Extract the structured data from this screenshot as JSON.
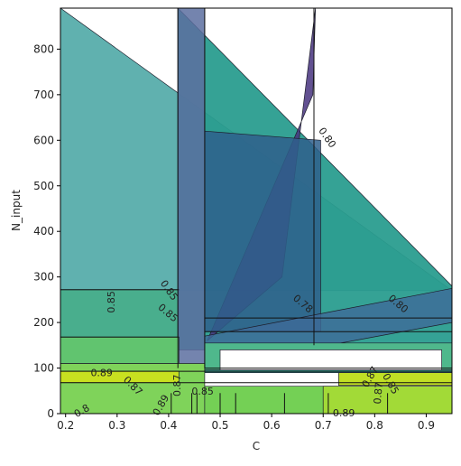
{
  "chart_data": {
    "type": "contour",
    "title": "",
    "xlabel": "C",
    "ylabel": "N_input",
    "xlim": [
      0.19,
      0.95
    ],
    "ylim": [
      0,
      890
    ],
    "xticks": [
      {
        "value": 0.2,
        "label": "0.2"
      },
      {
        "value": 0.3,
        "label": "0.3"
      },
      {
        "value": 0.4,
        "label": "0.4"
      },
      {
        "value": 0.5,
        "label": "0.5"
      },
      {
        "value": 0.6,
        "label": "0.6"
      },
      {
        "value": 0.7,
        "label": "0.7"
      },
      {
        "value": 0.8,
        "label": "0.8"
      },
      {
        "value": 0.9,
        "label": "0.9"
      }
    ],
    "yticks": [
      {
        "value": 0,
        "label": "0"
      },
      {
        "value": 100,
        "label": "100"
      },
      {
        "value": 200,
        "label": "200"
      },
      {
        "value": 300,
        "label": "300"
      },
      {
        "value": 400,
        "label": "400"
      },
      {
        "value": 500,
        "label": "500"
      },
      {
        "value": 600,
        "label": "600"
      },
      {
        "value": 700,
        "label": "700"
      },
      {
        "value": 800,
        "label": "800"
      }
    ],
    "grid": false,
    "colormap": "viridis",
    "regions": [
      {
        "level": 0.855,
        "color": "#4fa9a6",
        "opacity": 0.9,
        "points": [
          [
            0.19,
            890
          ],
          [
            0.95,
            270
          ],
          [
            0.19,
            270
          ]
        ]
      },
      {
        "level": 0.855,
        "color": "#49ae8d",
        "opacity": 1,
        "points": [
          [
            0.19,
            272
          ],
          [
            0.42,
            272
          ],
          [
            0.42,
            165
          ],
          [
            0.19,
            165
          ]
        ]
      },
      {
        "level": 0.83,
        "color": "#2a9d8f",
        "opacity": 0.95,
        "points": [
          [
            0.418,
            890
          ],
          [
            0.95,
            280
          ],
          [
            0.95,
            90
          ],
          [
            0.47,
            90
          ],
          [
            0.47,
            140
          ],
          [
            0.418,
            140
          ]
        ]
      },
      {
        "level": 0.78,
        "color": "#46327e",
        "opacity": 0.85,
        "points": [
          [
            0.685,
            890
          ],
          [
            0.68,
            700
          ],
          [
            0.475,
            160
          ],
          [
            0.62,
            300
          ]
        ]
      },
      {
        "level": 0.8,
        "color": "#5c6fa0",
        "opacity": 0.85,
        "points": [
          [
            0.418,
            890
          ],
          [
            0.47,
            890
          ],
          [
            0.47,
            100
          ],
          [
            0.418,
            100
          ]
        ]
      },
      {
        "level": 0.81,
        "color": "#2f5f8c",
        "opacity": 0.85,
        "points": [
          [
            0.47,
            620
          ],
          [
            0.695,
            600
          ],
          [
            0.695,
            180
          ],
          [
            0.47,
            180
          ]
        ]
      },
      {
        "level": 0.82,
        "color": "#3e6a98",
        "opacity": 0.8,
        "points": [
          [
            0.47,
            170
          ],
          [
            0.95,
            275
          ],
          [
            0.95,
            200
          ],
          [
            0.47,
            100
          ]
        ]
      },
      {
        "level": 0.86,
        "color": "#61c46f",
        "opacity": 1,
        "points": [
          [
            0.19,
            168
          ],
          [
            0.42,
            168
          ],
          [
            0.42,
            110
          ],
          [
            0.19,
            110
          ]
        ]
      },
      {
        "level": 0.87,
        "color": "#7fd35a",
        "opacity": 1,
        "points": [
          [
            0.19,
            110
          ],
          [
            0.47,
            110
          ],
          [
            0.47,
            0
          ],
          [
            0.19,
            0
          ]
        ]
      },
      {
        "level": 0.89,
        "color": "#c8e020",
        "opacity": 1,
        "points": [
          [
            0.19,
            93
          ],
          [
            0.42,
            93
          ],
          [
            0.42,
            68
          ],
          [
            0.19,
            68
          ]
        ]
      },
      {
        "level": 0.86,
        "color": "#74d055",
        "opacity": 1,
        "points": [
          [
            0.47,
            60
          ],
          [
            0.95,
            60
          ],
          [
            0.95,
            0
          ],
          [
            0.47,
            0
          ]
        ]
      },
      {
        "level": 0.88,
        "color": "#a2da37",
        "opacity": 1,
        "points": [
          [
            0.7,
            60
          ],
          [
            0.95,
            60
          ],
          [
            0.95,
            0
          ],
          [
            0.7,
            0
          ]
        ]
      },
      {
        "level": 0.89,
        "color": "#c0df25",
        "opacity": 1,
        "points": [
          [
            0.73,
            90
          ],
          [
            0.95,
            90
          ],
          [
            0.95,
            62
          ],
          [
            0.73,
            62
          ]
        ]
      },
      {
        "level": 0.855,
        "color": "#4fb88c",
        "opacity": 1,
        "points": [
          [
            0.47,
            155
          ],
          [
            0.95,
            155
          ],
          [
            0.95,
            96
          ],
          [
            0.47,
            96
          ]
        ]
      },
      {
        "level": 0.875,
        "color": "#ffffff",
        "opacity": 1,
        "points": [
          [
            0.5,
            140
          ],
          [
            0.93,
            140
          ],
          [
            0.93,
            96
          ],
          [
            0.5,
            96
          ]
        ]
      }
    ],
    "contour_lines": [
      {
        "points": [
          [
            0.418,
            890
          ],
          [
            0.418,
            100
          ]
        ]
      },
      {
        "points": [
          [
            0.47,
            890
          ],
          [
            0.47,
            100
          ]
        ]
      },
      {
        "points": [
          [
            0.682,
            890
          ],
          [
            0.682,
            150
          ]
        ]
      },
      {
        "points": [
          [
            0.19,
            272
          ],
          [
            0.42,
            272
          ]
        ]
      },
      {
        "points": [
          [
            0.19,
            168
          ],
          [
            0.42,
            168
          ]
        ]
      },
      {
        "points": [
          [
            0.19,
            93
          ],
          [
            0.95,
            93
          ]
        ]
      },
      {
        "points": [
          [
            0.19,
            68
          ],
          [
            0.95,
            68
          ]
        ]
      },
      {
        "points": [
          [
            0.47,
            100
          ],
          [
            0.95,
            100
          ]
        ]
      },
      {
        "points": [
          [
            0.47,
            180
          ],
          [
            0.95,
            180
          ]
        ]
      },
      {
        "points": [
          [
            0.47,
            210
          ],
          [
            0.95,
            210
          ]
        ]
      },
      {
        "points": [
          [
            0.405,
            45
          ],
          [
            0.405,
            0
          ]
        ]
      },
      {
        "points": [
          [
            0.445,
            45
          ],
          [
            0.445,
            0
          ]
        ]
      },
      {
        "points": [
          [
            0.455,
            45
          ],
          [
            0.455,
            0
          ]
        ]
      },
      {
        "points": [
          [
            0.5,
            45
          ],
          [
            0.5,
            0
          ]
        ]
      },
      {
        "points": [
          [
            0.53,
            45
          ],
          [
            0.53,
            0
          ]
        ]
      },
      {
        "points": [
          [
            0.625,
            45
          ],
          [
            0.625,
            0
          ]
        ]
      },
      {
        "points": [
          [
            0.71,
            45
          ],
          [
            0.71,
            0
          ]
        ]
      },
      {
        "points": [
          [
            0.825,
            45
          ],
          [
            0.825,
            0
          ]
        ]
      },
      {
        "points": [
          [
            0.19,
            168
          ],
          [
            0.19,
            168
          ]
        ]
      }
    ],
    "contour_labels": [
      {
        "text": "0.80",
        "x": 0.707,
        "y": 605,
        "rotation": 55
      },
      {
        "text": "0.85",
        "x": 0.29,
        "y": 245,
        "rotation": -90
      },
      {
        "text": "0.85",
        "x": 0.4,
        "y": 270,
        "rotation": 55
      },
      {
        "text": "0.85",
        "x": 0.398,
        "y": 220,
        "rotation": 40
      },
      {
        "text": "0.78",
        "x": 0.66,
        "y": 240,
        "rotation": 40
      },
      {
        "text": "0.80",
        "x": 0.845,
        "y": 240,
        "rotation": 40
      },
      {
        "text": "0.89",
        "x": 0.27,
        "y": 88,
        "rotation": 0
      },
      {
        "text": "0.87",
        "x": 0.33,
        "y": 60,
        "rotation": 45
      },
      {
        "text": "0.87",
        "x": 0.418,
        "y": 62,
        "rotation": -90
      },
      {
        "text": "0.85",
        "x": 0.466,
        "y": 48,
        "rotation": 0
      },
      {
        "text": "0.89",
        "x": 0.386,
        "y": 18,
        "rotation": -60
      },
      {
        "text": "0.89",
        "x": 0.74,
        "y": 0,
        "rotation": 0
      },
      {
        "text": "0.8",
        "x": 0.232,
        "y": 5,
        "rotation": -30
      },
      {
        "text": "0.87",
        "x": 0.792,
        "y": 80,
        "rotation": -60
      },
      {
        "text": "0.85",
        "x": 0.83,
        "y": 65,
        "rotation": 60
      },
      {
        "text": "0.87",
        "x": 0.808,
        "y": 45,
        "rotation": -85
      }
    ]
  }
}
